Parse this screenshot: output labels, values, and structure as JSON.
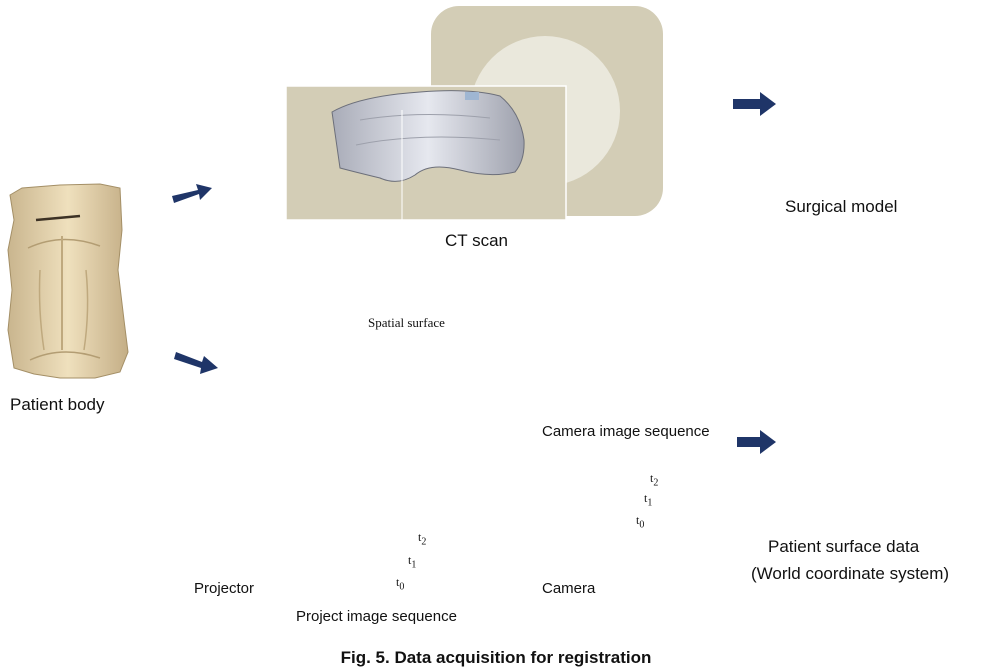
{
  "labels": {
    "patient_body": "Patient body",
    "ct_scan": "CT scan",
    "surgical_model": "Surgical model",
    "spatial_surface": "Spatial surface",
    "camera_image_sequence": "Camera image sequence",
    "patient_surface_data_line1": "Patient surface data",
    "patient_surface_data_line2": "(World coordinate system)",
    "projector": "Projector",
    "project_image_sequence": "Project image sequence",
    "camera": "Camera"
  },
  "time_labels": {
    "projector": [
      "t",
      "t",
      "t"
    ],
    "projector_subscripts": [
      "2",
      "1",
      "0"
    ],
    "camera": [
      "t",
      "t",
      "t"
    ],
    "camera_subscripts": [
      "2",
      "1",
      "0"
    ]
  },
  "caption": "Fig. 5.   Data acquisition for registration",
  "colors": {
    "arrow": "#1f3568",
    "skin": "#ead9b4",
    "ct_panel": "#d3cdb6",
    "ct_light": "#eae8dc",
    "model_surface": "#d7d9e3",
    "tumor": "#c0454f",
    "camera_plane": "#4a5fa8",
    "projector_box": "#b8b8ae"
  }
}
